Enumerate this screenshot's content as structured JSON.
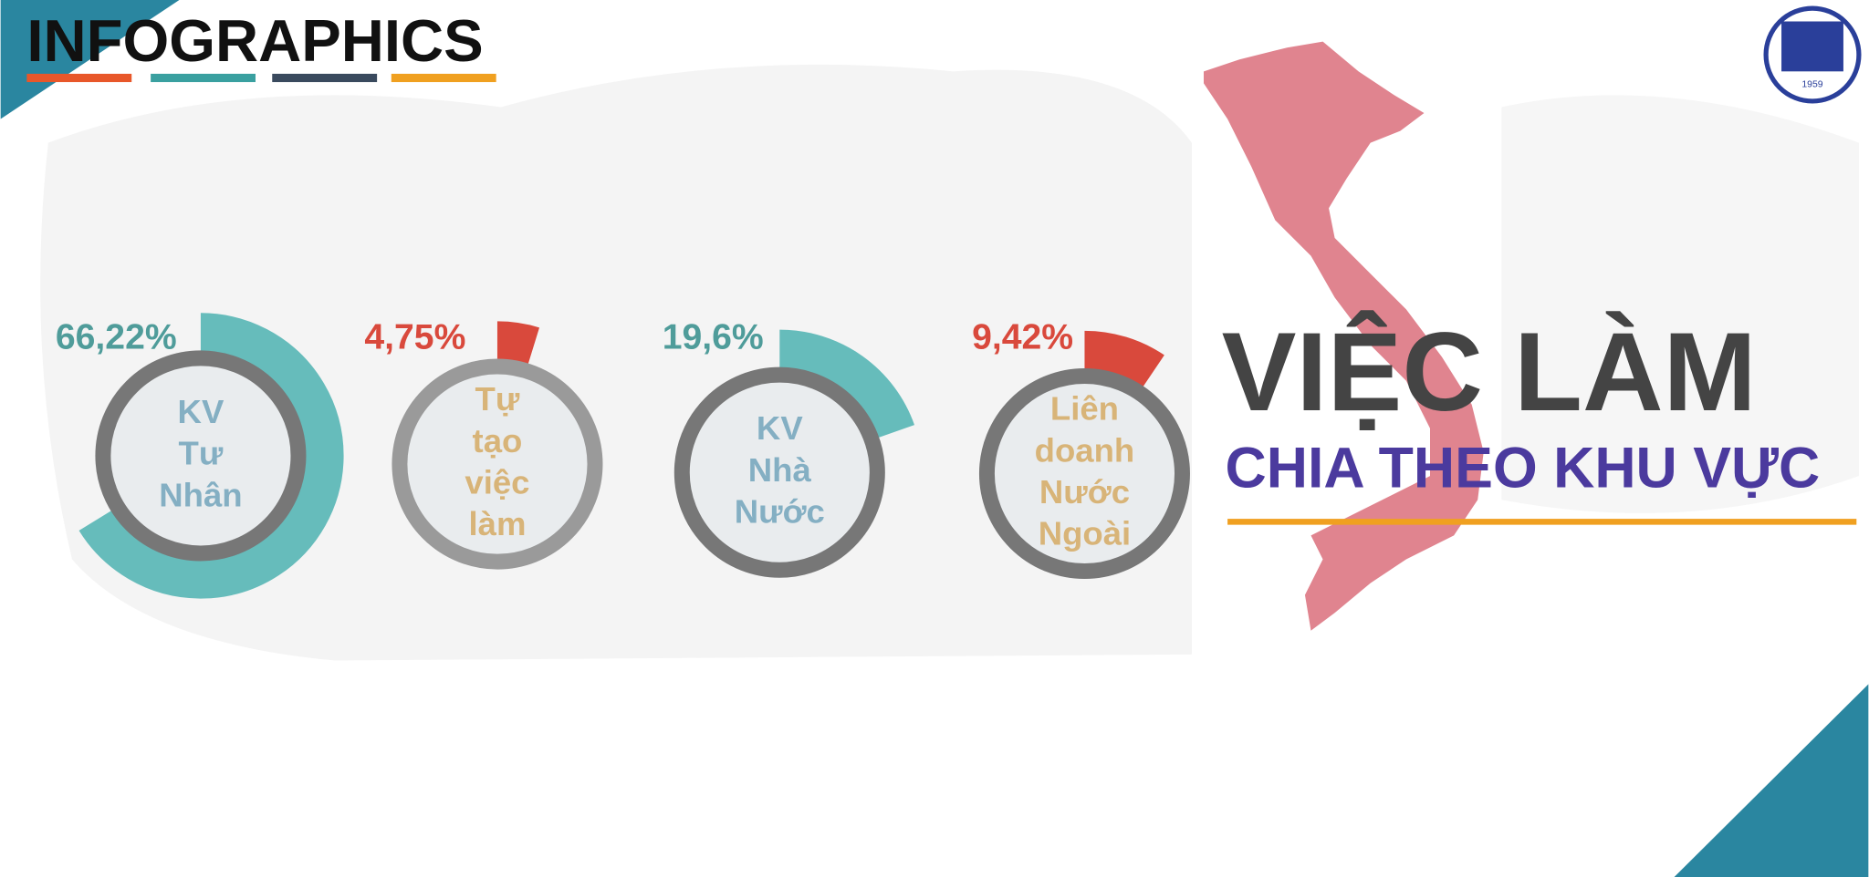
{
  "header": {
    "title": "INFOGRAPHICS",
    "logo_year": "1959"
  },
  "headline": {
    "title": "VIỆC LÀM",
    "subtitle": "CHIA THEO KHU VỰC"
  },
  "chart_data": [
    {
      "type": "ring",
      "label_lines": [
        "KV",
        "Tư",
        "Nhân"
      ],
      "values": [
        66.22
      ],
      "value_labels": [
        "66,22%"
      ],
      "color": "#66bcbb",
      "label_color": "#4f9c9a",
      "text_color": "#84afc3",
      "ring_color": "#777777"
    },
    {
      "type": "ring",
      "label_lines": [
        "Tự",
        "tạo",
        "việc",
        "làm"
      ],
      "values": [
        4.75
      ],
      "value_labels": [
        "4,75%"
      ],
      "color": "#d9493c",
      "label_color": "#d9493c",
      "text_color": "#d8b478",
      "ring_color": "#9a9a9a"
    },
    {
      "type": "ring",
      "label_lines": [
        "KV",
        "Nhà",
        "Nước"
      ],
      "values": [
        19.6
      ],
      "value_labels": [
        "19,6%"
      ],
      "color": "#66bcbb",
      "label_color": "#4f9c9a",
      "text_color": "#84afc3",
      "ring_color": "#777777"
    },
    {
      "type": "ring",
      "label_lines": [
        "Liên",
        "doanh",
        "Nước",
        "Ngoài"
      ],
      "values": [
        9.42
      ],
      "value_labels": [
        "9,42%"
      ],
      "color": "#d9493c",
      "label_color": "#d9493c",
      "text_color": "#d8b478",
      "ring_color": "#777777"
    }
  ]
}
